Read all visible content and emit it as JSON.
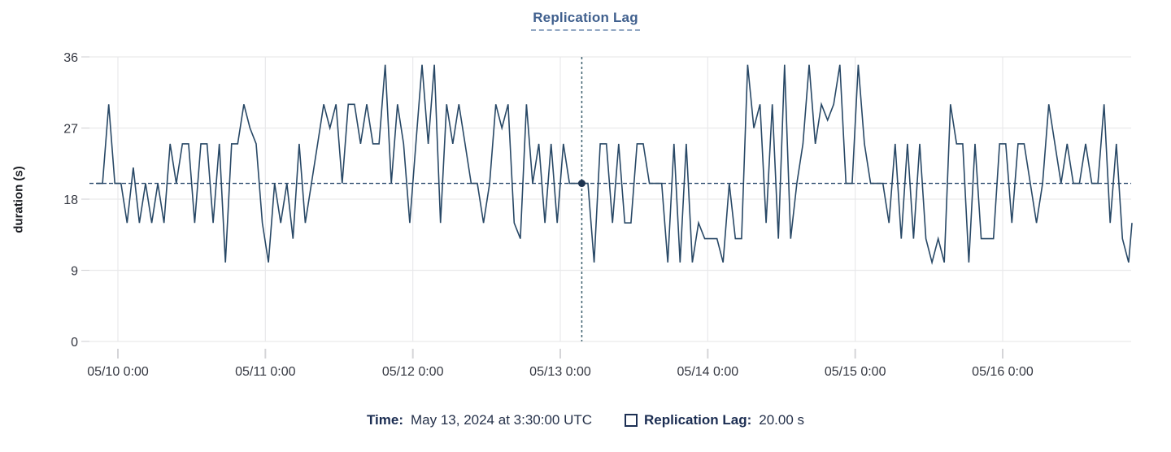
{
  "title": "Replication Lag",
  "y_axis": {
    "label": "duration (s)"
  },
  "tooltip": {
    "time_label": "Time:",
    "time_value": "May 13, 2024 at 3:30:00 UTC",
    "series_label": "Replication Lag:",
    "series_value": "20.00 s"
  },
  "colors": {
    "line": "#284866",
    "dot": "#1E3450",
    "crosshair_vertical": "#3C5F6E",
    "value_guide": "#2B4A6E",
    "grid": "#E9E9EB",
    "tick_mark": "#D5D5D8",
    "axis_text": "#343741",
    "title_text": "#40608E"
  },
  "chart_data": {
    "type": "line",
    "title": "Replication Lag",
    "xlabel": "",
    "ylabel": "duration (s)",
    "ylim": [
      0,
      36
    ],
    "y_ticks": [
      0,
      9,
      18,
      27,
      36
    ],
    "x_tick_labels": [
      "05/10 0:00",
      "05/11 0:00",
      "05/12 0:00",
      "05/13 0:00",
      "05/14 0:00",
      "05/15 0:00",
      "05/16 0:00"
    ],
    "grid": true,
    "legend_position": "bottom",
    "x_start_hours": -3.5,
    "x_step_hours": 1,
    "x_unit": "hours relative to 05/10 0:00 UTC, hourly samples at half past",
    "crosshair": {
      "index": 79,
      "time": "May 13, 2024 at 3:30:00 UTC",
      "value": 20.0
    },
    "value_guide_y": 20,
    "series": [
      {
        "name": "Replication Lag",
        "unit": "s",
        "values": [
          20,
          20,
          30,
          20,
          20,
          15,
          22,
          15,
          20,
          15,
          20,
          15,
          25,
          20,
          25,
          25,
          15,
          25,
          25,
          15,
          25,
          10,
          25,
          25,
          30,
          27,
          25,
          15,
          10,
          20,
          15,
          20,
          13,
          25,
          15,
          20,
          25,
          30,
          27,
          30,
          20,
          30,
          30,
          25,
          30,
          25,
          25,
          35,
          20,
          30,
          25,
          15,
          25,
          35,
          25,
          35,
          15,
          30,
          25,
          30,
          25,
          20,
          20,
          15,
          20,
          30,
          27,
          30,
          15,
          13,
          30,
          20,
          25,
          15,
          25,
          15,
          25,
          20,
          20,
          20,
          20,
          10,
          25,
          25,
          15,
          25,
          15,
          15,
          25,
          25,
          20,
          20,
          20,
          10,
          25,
          10,
          25,
          10,
          15,
          13,
          13,
          13,
          10,
          20,
          13,
          13,
          35,
          27,
          30,
          15,
          30,
          13,
          35,
          13,
          20,
          25,
          35,
          25,
          30,
          28,
          30,
          35,
          20,
          20,
          35,
          25,
          20,
          20,
          20,
          15,
          25,
          13,
          25,
          13,
          25,
          13,
          10,
          13,
          10,
          30,
          25,
          25,
          10,
          25,
          13,
          13,
          13,
          25,
          25,
          15,
          25,
          25,
          20,
          15,
          20,
          30,
          25,
          20,
          25,
          20,
          20,
          25,
          20,
          20,
          30,
          15,
          25,
          13,
          10,
          15
        ]
      }
    ]
  }
}
